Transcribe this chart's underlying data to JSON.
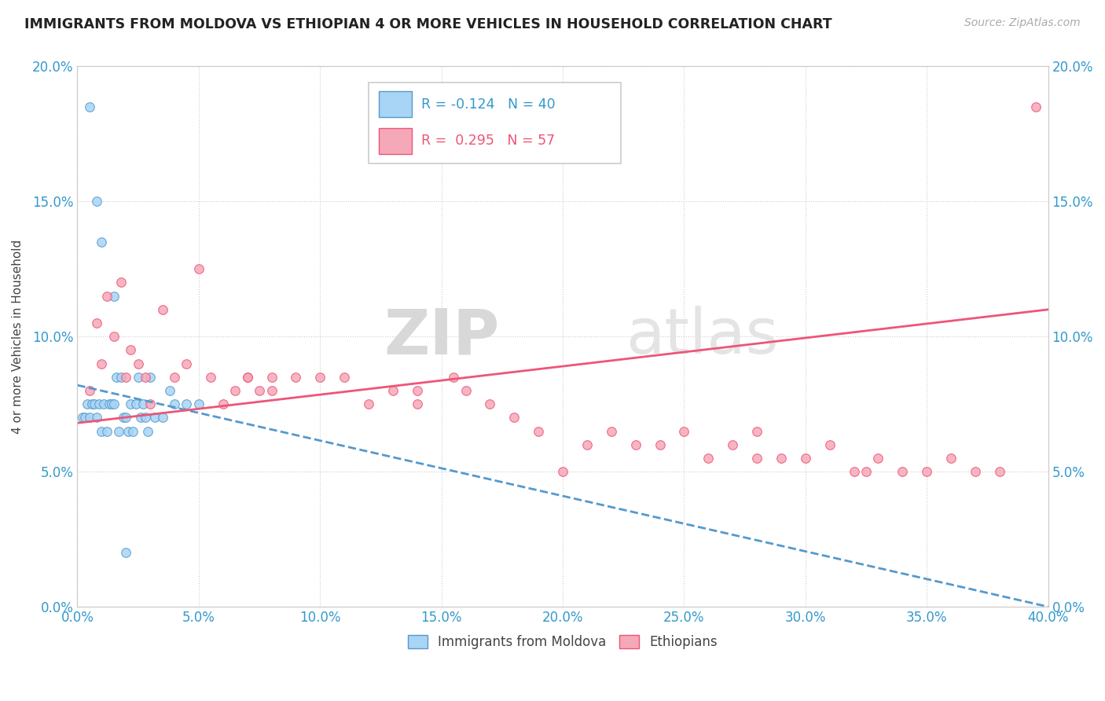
{
  "title": "IMMIGRANTS FROM MOLDOVA VS ETHIOPIAN 4 OR MORE VEHICLES IN HOUSEHOLD CORRELATION CHART",
  "source": "Source: ZipAtlas.com",
  "ylabel": "4 or more Vehicles in Household",
  "r_moldova": -0.124,
  "n_moldova": 40,
  "r_ethiopian": 0.295,
  "n_ethiopian": 57,
  "color_moldova": "#a8d4f5",
  "color_ethiopian": "#f5a8b8",
  "color_moldova_line": "#5599cc",
  "color_ethiopian_line": "#ee5577",
  "watermark_zip": "ZIP",
  "watermark_atlas": "atlas",
  "moldova_scatter_x": [
    0.2,
    0.3,
    0.4,
    0.5,
    0.6,
    0.7,
    0.8,
    0.9,
    1.0,
    1.1,
    1.2,
    1.3,
    1.4,
    1.5,
    1.6,
    1.7,
    1.8,
    1.9,
    2.0,
    2.1,
    2.2,
    2.3,
    2.4,
    2.5,
    2.6,
    2.7,
    2.8,
    2.9,
    3.0,
    3.2,
    3.5,
    3.8,
    4.0,
    4.5,
    5.0,
    0.5,
    0.8,
    1.0,
    1.5,
    2.0
  ],
  "moldova_scatter_y": [
    7.0,
    7.0,
    7.5,
    7.0,
    7.5,
    7.5,
    7.0,
    7.5,
    6.5,
    7.5,
    6.5,
    7.5,
    7.5,
    7.5,
    8.5,
    6.5,
    8.5,
    7.0,
    7.0,
    6.5,
    7.5,
    6.5,
    7.5,
    8.5,
    7.0,
    7.5,
    7.0,
    6.5,
    8.5,
    7.0,
    7.0,
    8.0,
    7.5,
    7.5,
    7.5,
    18.5,
    15.0,
    13.5,
    11.5,
    2.0
  ],
  "ethiopian_scatter_x": [
    0.5,
    0.8,
    1.0,
    1.2,
    1.5,
    1.8,
    2.0,
    2.2,
    2.5,
    2.8,
    3.0,
    3.5,
    4.0,
    4.5,
    5.0,
    5.5,
    6.0,
    6.5,
    7.0,
    7.5,
    8.0,
    9.0,
    10.0,
    11.0,
    12.0,
    13.0,
    14.0,
    15.5,
    16.0,
    17.0,
    18.0,
    19.0,
    20.0,
    21.0,
    22.0,
    23.0,
    24.0,
    25.0,
    26.0,
    27.0,
    28.0,
    29.0,
    30.0,
    31.0,
    32.0,
    33.0,
    34.0,
    35.0,
    36.0,
    37.0,
    38.0,
    39.5,
    32.5,
    8.0,
    28.0,
    14.0,
    7.0
  ],
  "ethiopian_scatter_y": [
    8.0,
    10.5,
    9.0,
    11.5,
    10.0,
    12.0,
    8.5,
    9.5,
    9.0,
    8.5,
    7.5,
    11.0,
    8.5,
    9.0,
    12.5,
    8.5,
    7.5,
    8.0,
    8.5,
    8.0,
    8.0,
    8.5,
    8.5,
    8.5,
    7.5,
    8.0,
    7.5,
    8.5,
    8.0,
    7.5,
    7.0,
    6.5,
    5.0,
    6.0,
    6.5,
    6.0,
    6.0,
    6.5,
    5.5,
    6.0,
    5.5,
    5.5,
    5.5,
    6.0,
    5.0,
    5.5,
    5.0,
    5.0,
    5.5,
    5.0,
    5.0,
    18.5,
    5.0,
    8.5,
    6.5,
    8.0,
    8.5
  ],
  "xmin": 0.0,
  "xmax": 40.0,
  "ymin": 0.0,
  "ymax": 20.0,
  "yticks": [
    0.0,
    5.0,
    10.0,
    15.0,
    20.0
  ],
  "xticks": [
    0.0,
    5.0,
    10.0,
    15.0,
    20.0,
    25.0,
    30.0,
    35.0,
    40.0
  ],
  "moldova_trend_x0": 0.0,
  "moldova_trend_y0": 8.2,
  "moldova_trend_x1": 40.0,
  "moldova_trend_y1": 0.0,
  "ethiopian_trend_x0": 0.0,
  "ethiopian_trend_y0": 6.8,
  "ethiopian_trend_x1": 40.0,
  "ethiopian_trend_y1": 11.0
}
